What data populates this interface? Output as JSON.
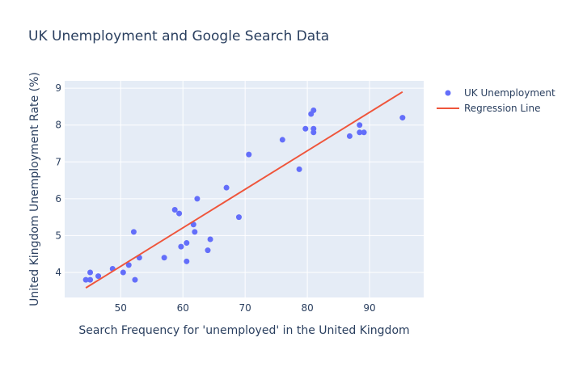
{
  "chart_data": {
    "type": "scatter",
    "title": "UK Unemployment and Google Search Data",
    "xlabel": "Search Frequency for 'unemployed' in the United Kingdom",
    "ylabel": "United Kingdom Unemployment Rate (%)",
    "xlim": [
      41.0,
      98.7
    ],
    "ylim": [
      3.32,
      9.2
    ],
    "xticks": [
      50,
      60,
      70,
      80,
      90
    ],
    "yticks": [
      4,
      5,
      6,
      7,
      8,
      9
    ],
    "grid": true,
    "legend_placement": "top-right",
    "series": [
      {
        "name": "UK Unemployment",
        "mode": "markers",
        "color": "#636efa",
        "x": [
          44.4,
          45.1,
          45.1,
          46.4,
          48.7,
          50.4,
          51.3,
          52.1,
          52.3,
          53.0,
          57.0,
          58.7,
          59.4,
          59.7,
          60.6,
          60.6,
          61.7,
          61.9,
          62.3,
          64.0,
          64.4,
          67.0,
          69.0,
          70.6,
          76.0,
          78.7,
          79.7,
          80.6,
          81.0,
          81.0,
          81.0,
          86.8,
          88.4,
          88.4,
          89.1,
          95.3
        ],
        "y": [
          3.8,
          3.8,
          4.0,
          3.9,
          4.1,
          4.0,
          4.2,
          5.1,
          3.8,
          4.4,
          4.4,
          5.7,
          5.6,
          4.7,
          4.8,
          4.3,
          5.3,
          5.1,
          6.0,
          4.6,
          4.9,
          6.3,
          5.5,
          7.2,
          7.6,
          6.8,
          7.9,
          8.3,
          8.4,
          7.9,
          7.8,
          7.7,
          8.0,
          7.8,
          7.8,
          8.2
        ]
      },
      {
        "name": "Regression Line",
        "mode": "lines",
        "color": "#ef553b",
        "x": [
          44.4,
          95.3
        ],
        "y": [
          3.58,
          8.9
        ]
      }
    ]
  }
}
